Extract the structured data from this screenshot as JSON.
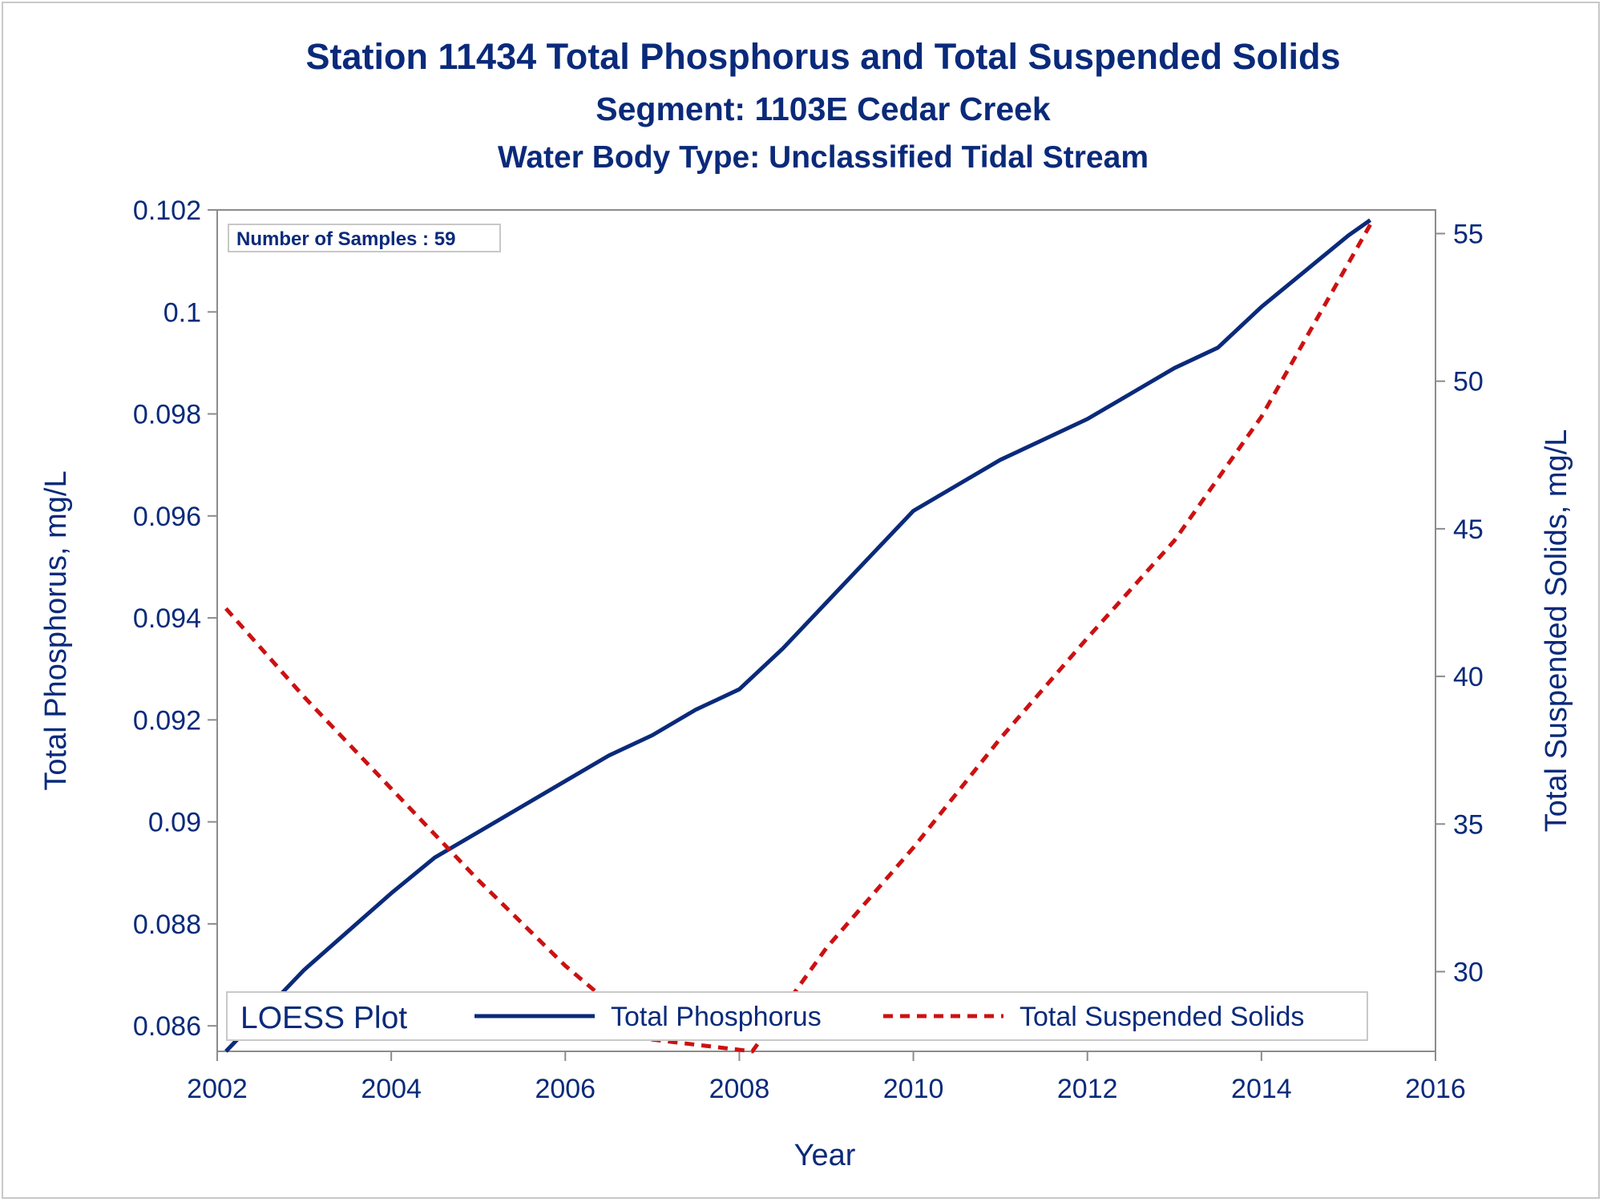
{
  "chart_data": {
    "type": "line",
    "title": "Station 11434  Total Phosphorus and Total Suspended Solids",
    "subtitles": [
      "Segment: 1103E  Cedar Creek",
      "Water Body Type: Unclassified Tidal Stream"
    ],
    "xlabel": "Year",
    "ylabel_left": "Total Phosphorus, mg/L",
    "ylabel_right": "Total Suspended Solids, mg/L",
    "xlim": [
      2002,
      2016
    ],
    "ylim_left": [
      0.0855,
      0.102
    ],
    "ylim_right": [
      27.3,
      55.8
    ],
    "x_ticks": [
      2002,
      2004,
      2006,
      2008,
      2010,
      2012,
      2014,
      2016
    ],
    "y_ticks_left": [
      0.086,
      0.088,
      0.09,
      0.092,
      0.094,
      0.096,
      0.098,
      0.1,
      0.102
    ],
    "y_ticks_right": [
      30,
      35,
      40,
      45,
      50,
      55
    ],
    "grid": false,
    "inset_text": "Number of Samples : 59",
    "legend": {
      "title": "LOESS Plot",
      "placement": "bottom-inside",
      "entries": [
        "Total Phosphorus",
        "Total Suspended Solids"
      ]
    },
    "series": [
      {
        "name": "Total Phosphorus",
        "axis": "left",
        "color": "#0a2a7a",
        "style": "solid",
        "x": [
          2002.1,
          2003.0,
          2004.0,
          2004.5,
          2005.0,
          2005.5,
          2006.0,
          2006.5,
          2007.0,
          2007.5,
          2008.0,
          2008.5,
          2009.0,
          2009.5,
          2010.0,
          2010.5,
          2011.0,
          2011.5,
          2012.0,
          2012.5,
          2013.0,
          2013.5,
          2014.0,
          2014.5,
          2015.0,
          2015.25
        ],
        "y": [
          0.0855,
          0.0871,
          0.0886,
          0.0893,
          0.0898,
          0.0903,
          0.0908,
          0.0913,
          0.0917,
          0.0922,
          0.0926,
          0.0934,
          0.0943,
          0.0952,
          0.0961,
          0.0966,
          0.0971,
          0.0975,
          0.0979,
          0.0984,
          0.0989,
          0.0993,
          0.1001,
          0.1008,
          0.1015,
          0.1018
        ]
      },
      {
        "name": "Total Suspended Solids",
        "axis": "right",
        "color": "#cc1111",
        "style": "dashed",
        "x": [
          2002.1,
          2003.0,
          2004.0,
          2005.0,
          2006.0,
          2007.0,
          2008.15,
          2009.0,
          2010.0,
          2011.0,
          2012.0,
          2013.0,
          2014.0,
          2015.25
        ],
        "y": [
          42.3,
          39.3,
          36.2,
          33.1,
          30.2,
          27.7,
          27.3,
          30.8,
          34.2,
          37.9,
          41.3,
          44.6,
          48.8,
          55.3
        ]
      }
    ]
  }
}
